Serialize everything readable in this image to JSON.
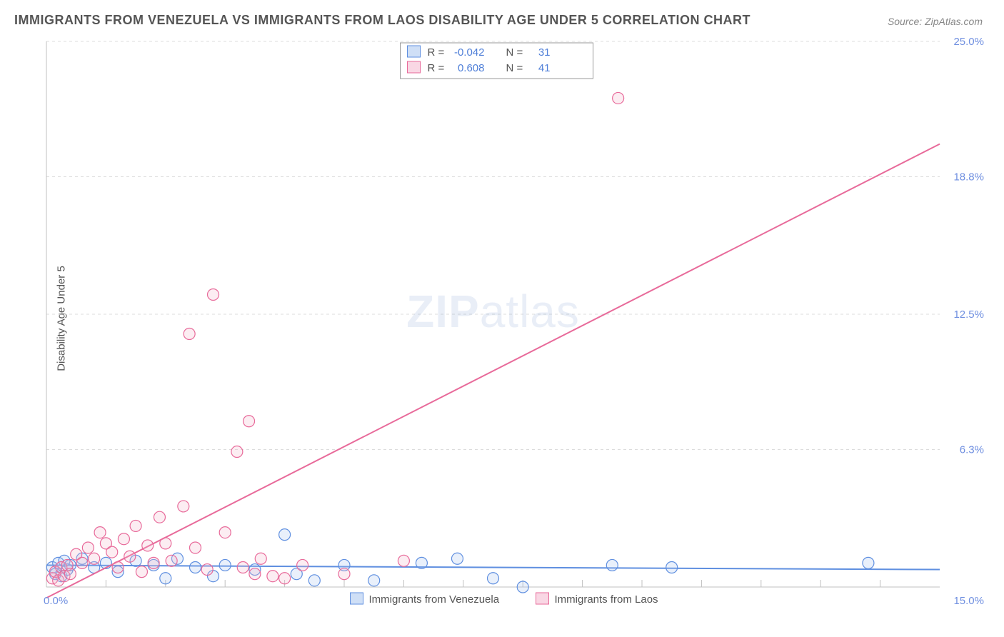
{
  "title": "IMMIGRANTS FROM VENEZUELA VS IMMIGRANTS FROM LAOS DISABILITY AGE UNDER 5 CORRELATION CHART",
  "source": "Source: ZipAtlas.com",
  "ylabel": "Disability Age Under 5",
  "watermark_zip": "ZIP",
  "watermark_atlas": "atlas",
  "chart": {
    "type": "scatter",
    "background_color": "#ffffff",
    "grid_color": "#dcdcdc",
    "axis_color": "#c0c0c0",
    "xlim": [
      0,
      15
    ],
    "ylim": [
      0,
      25
    ],
    "x_ticks": [
      0,
      15
    ],
    "x_tick_labels": [
      "0.0%",
      "15.0%"
    ],
    "y_ticks": [
      6.3,
      12.5,
      18.8,
      25.0
    ],
    "y_tick_labels": [
      "6.3%",
      "12.5%",
      "18.8%",
      "25.0%"
    ],
    "x_minor_ticks": [
      1,
      2,
      3,
      4,
      5,
      6,
      7,
      8,
      9,
      10,
      11,
      12,
      13,
      14
    ],
    "marker_radius": 8,
    "marker_fill_opacity": 0.25,
    "series": [
      {
        "name": "Immigrants from Venezuela",
        "color_stroke": "#5f8fe0",
        "color_fill": "#a7c4ef",
        "r": "-0.042",
        "n": "31",
        "regression": {
          "x1": 0,
          "y1": 1.0,
          "x2": 15,
          "y2": 0.8
        },
        "points": [
          [
            0.1,
            0.9
          ],
          [
            0.15,
            0.6
          ],
          [
            0.2,
            1.1
          ],
          [
            0.25,
            0.5
          ],
          [
            0.3,
            1.2
          ],
          [
            0.35,
            0.8
          ],
          [
            0.4,
            1.0
          ],
          [
            0.6,
            1.3
          ],
          [
            0.8,
            0.9
          ],
          [
            1.0,
            1.1
          ],
          [
            1.2,
            0.7
          ],
          [
            1.5,
            1.2
          ],
          [
            1.8,
            1.0
          ],
          [
            2.0,
            0.4
          ],
          [
            2.2,
            1.3
          ],
          [
            2.5,
            0.9
          ],
          [
            2.8,
            0.5
          ],
          [
            3.0,
            1.0
          ],
          [
            3.5,
            0.8
          ],
          [
            4.0,
            2.4
          ],
          [
            4.2,
            0.6
          ],
          [
            4.5,
            0.3
          ],
          [
            5.0,
            1.0
          ],
          [
            5.5,
            0.3
          ],
          [
            6.3,
            1.1
          ],
          [
            6.9,
            1.3
          ],
          [
            7.5,
            0.4
          ],
          [
            8.0,
            0.0
          ],
          [
            9.5,
            1.0
          ],
          [
            10.5,
            0.9
          ],
          [
            13.8,
            1.1
          ]
        ]
      },
      {
        "name": "Immigrants from Laos",
        "color_stroke": "#e86a9a",
        "color_fill": "#f4b6cd",
        "r": "0.608",
        "n": "41",
        "regression": {
          "x1": 0,
          "y1": -0.5,
          "x2": 15,
          "y2": 20.3
        },
        "points": [
          [
            0.1,
            0.4
          ],
          [
            0.15,
            0.7
          ],
          [
            0.2,
            0.3
          ],
          [
            0.25,
            0.9
          ],
          [
            0.3,
            0.5
          ],
          [
            0.35,
            1.0
          ],
          [
            0.4,
            0.6
          ],
          [
            0.5,
            1.5
          ],
          [
            0.6,
            1.1
          ],
          [
            0.7,
            1.8
          ],
          [
            0.8,
            1.3
          ],
          [
            0.9,
            2.5
          ],
          [
            1.0,
            2.0
          ],
          [
            1.1,
            1.6
          ],
          [
            1.2,
            0.9
          ],
          [
            1.3,
            2.2
          ],
          [
            1.4,
            1.4
          ],
          [
            1.5,
            2.8
          ],
          [
            1.6,
            0.7
          ],
          [
            1.7,
            1.9
          ],
          [
            1.8,
            1.1
          ],
          [
            1.9,
            3.2
          ],
          [
            2.0,
            2.0
          ],
          [
            2.1,
            1.2
          ],
          [
            2.3,
            3.7
          ],
          [
            2.4,
            11.6
          ],
          [
            2.5,
            1.8
          ],
          [
            2.7,
            0.8
          ],
          [
            2.8,
            13.4
          ],
          [
            3.0,
            2.5
          ],
          [
            3.2,
            6.2
          ],
          [
            3.3,
            0.9
          ],
          [
            3.4,
            7.6
          ],
          [
            3.5,
            0.6
          ],
          [
            3.6,
            1.3
          ],
          [
            3.8,
            0.5
          ],
          [
            4.0,
            0.4
          ],
          [
            4.3,
            1.0
          ],
          [
            5.0,
            0.6
          ],
          [
            6.0,
            1.2
          ],
          [
            9.6,
            22.4
          ]
        ]
      }
    ]
  },
  "legend_top": {
    "r_label": "R =",
    "n_label": "N ="
  },
  "bottom_legend_labels": [
    "Immigrants from Venezuela",
    "Immigrants from Laos"
  ],
  "colors": {
    "value_text": "#4f7fd8",
    "label_text": "#555555",
    "box_border": "#999999"
  }
}
